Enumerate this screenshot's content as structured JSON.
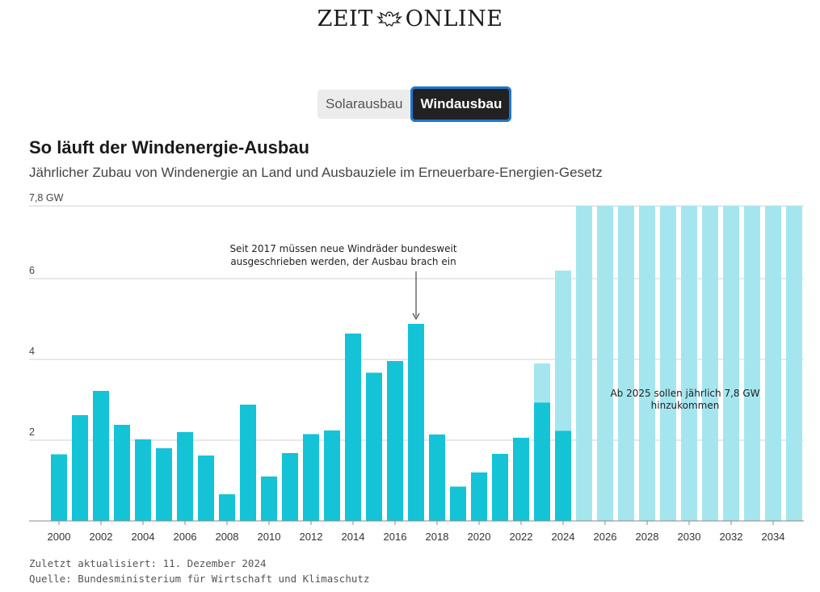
{
  "logo": {
    "left": "ZEIT",
    "right": "ONLINE"
  },
  "toggle": {
    "solar_label": "Solarausbau",
    "wind_label": "Windausbau",
    "active": "wind"
  },
  "chart_data": {
    "type": "bar",
    "title": "So läuft der Windenergie-Ausbau",
    "subtitle": "Jährlicher Zubau von Windenergie an Land und Ausbauziele im Erneuerbare-Energien-Gesetz",
    "ylim": [
      0,
      7.8
    ],
    "y_ticks": [
      2,
      4,
      6,
      7.8
    ],
    "y_tick_labels": [
      "2",
      "4",
      "6",
      "7,8 GW"
    ],
    "x_tick_labels": [
      "2000",
      "2002",
      "2004",
      "2006",
      "2008",
      "2010",
      "2012",
      "2014",
      "2016",
      "2018",
      "2020",
      "2022",
      "2024",
      "2026",
      "2028",
      "2030",
      "2032",
      "2034"
    ],
    "x": [
      2000,
      2001,
      2002,
      2003,
      2004,
      2005,
      2006,
      2007,
      2008,
      2009,
      2010,
      2011,
      2012,
      2013,
      2014,
      2015,
      2016,
      2017,
      2018,
      2019,
      2020,
      2021,
      2022,
      2023,
      2024,
      2025,
      2026,
      2027,
      2028,
      2029,
      2030,
      2031,
      2032,
      2033,
      2034,
      2035
    ],
    "series": [
      {
        "role": "actual",
        "color": "#14c3d6",
        "values": [
          1.65,
          2.62,
          3.22,
          2.38,
          2.02,
          1.8,
          2.2,
          1.62,
          0.66,
          2.88,
          1.1,
          1.68,
          2.15,
          2.24,
          4.64,
          3.67,
          3.96,
          4.88,
          2.14,
          0.85,
          1.2,
          1.66,
          2.06,
          2.93,
          2.23,
          null,
          null,
          null,
          null,
          null,
          null,
          null,
          null,
          null,
          null,
          null
        ]
      },
      {
        "role": "target",
        "color": "#a5e6ee",
        "values": [
          null,
          null,
          null,
          null,
          null,
          null,
          null,
          null,
          null,
          null,
          null,
          null,
          null,
          null,
          null,
          null,
          null,
          null,
          null,
          null,
          null,
          null,
          null,
          3.9,
          6.2,
          7.8,
          7.8,
          7.8,
          7.8,
          7.8,
          7.8,
          7.8,
          7.8,
          7.8,
          7.8,
          7.8
        ]
      }
    ],
    "grid": true,
    "annotations": [
      {
        "year": 2017,
        "lines": [
          "Seit 2017 müssen neue Windräder bundesweit",
          "ausgeschrieben werden, der Ausbau brach ein"
        ]
      },
      {
        "year": 2030,
        "lines": [
          "Ab 2025 sollen jährlich 7,8 GW",
          "hinzukommen"
        ]
      }
    ]
  },
  "footer": {
    "updated": "Zuletzt aktualisiert: 11. Dezember 2024",
    "source": "Quelle: Bundesministerium für Wirtschaft und Klimaschutz"
  }
}
